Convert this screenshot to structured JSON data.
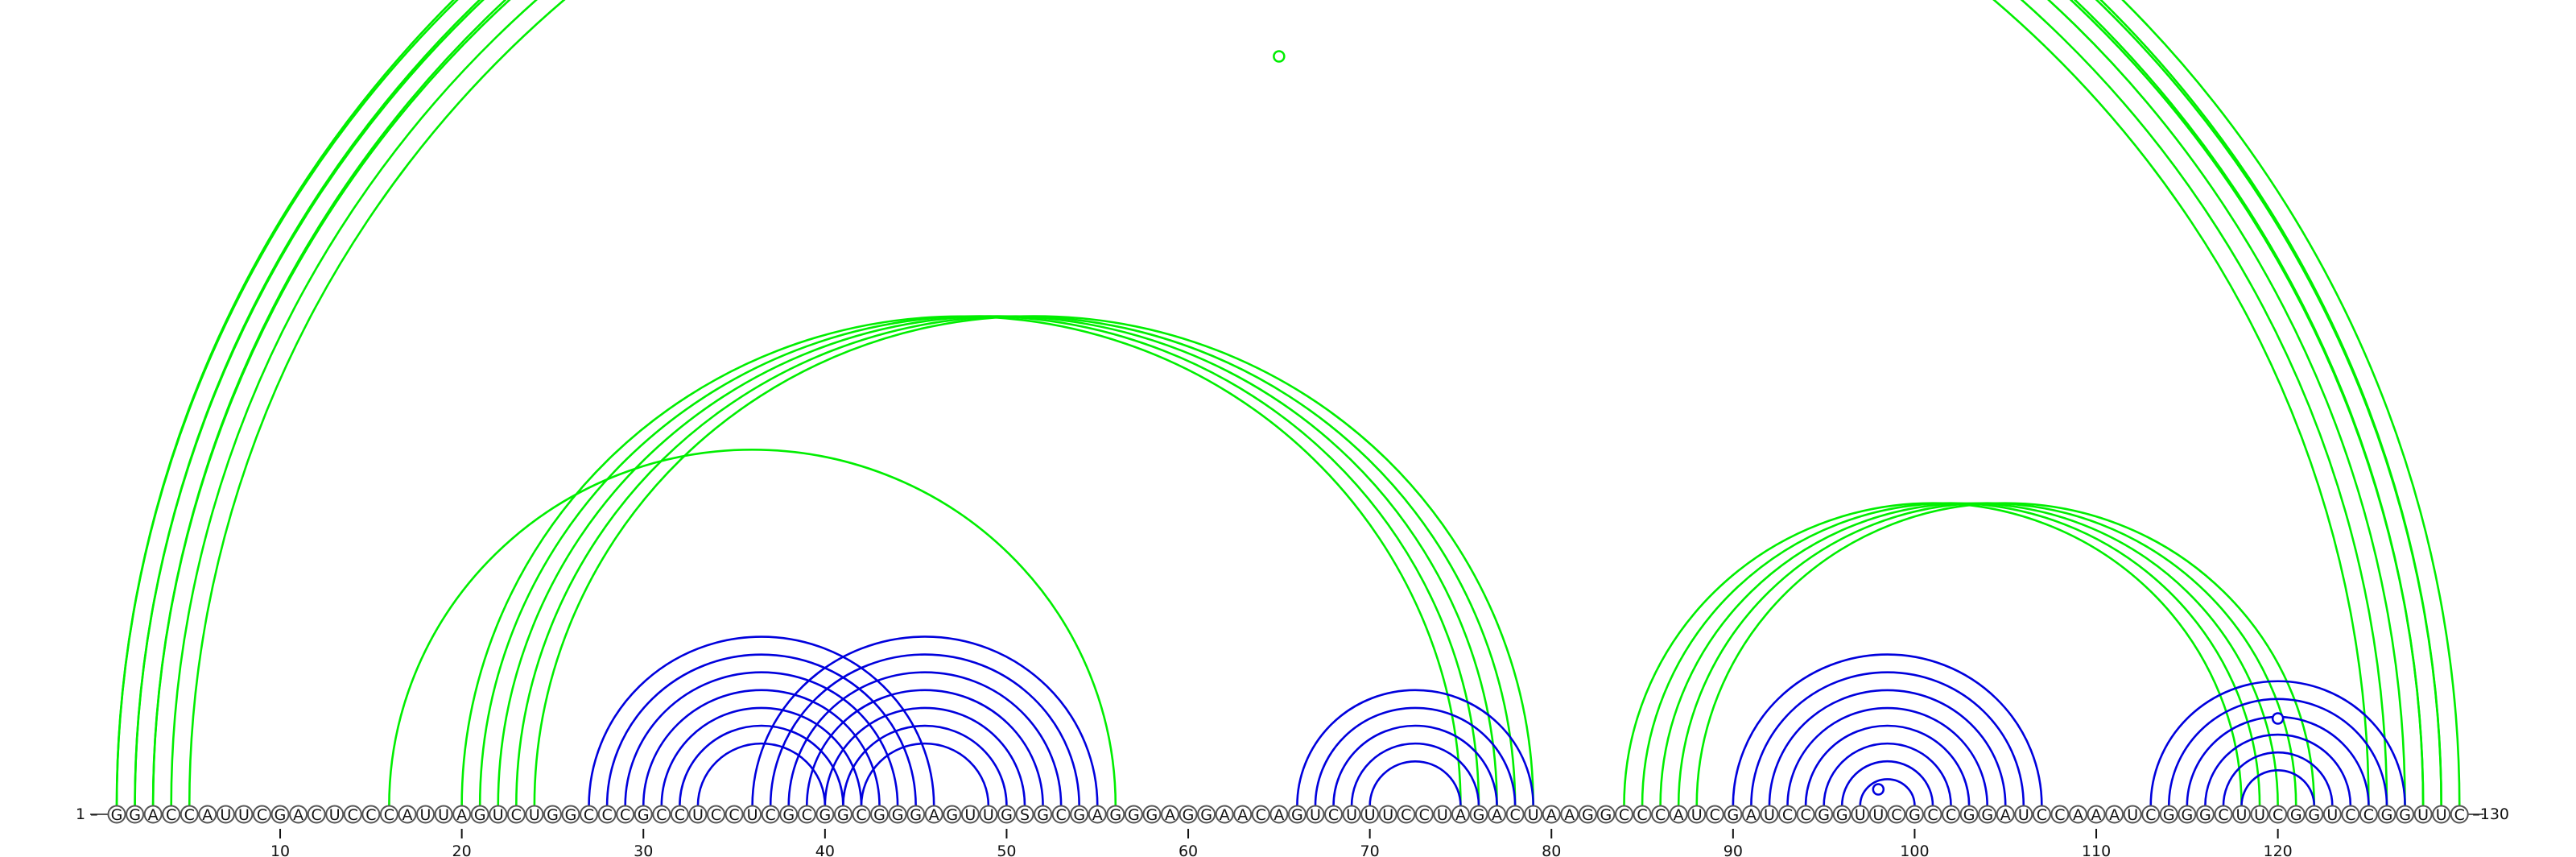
{
  "sequence": "GGACCAUUCGACUCCCAUUAGUCUGGCCCGCCUCCUCGCGGCGGGAGUUGSGCGAGGGAGGAACAGUCUUUCCUAGACUAAGGCCCAUCGAUCCGGUUCGCCGGAUCCAAAUCGGGCUUCGGUCCGGUUC",
  "start_label": "1",
  "end_label": "130",
  "tick_labels": [
    "10",
    "20",
    "30",
    "40",
    "50",
    "60",
    "70",
    "80",
    "90",
    "100",
    "110",
    "120"
  ],
  "tick_positions": [
    10,
    20,
    30,
    40,
    50,
    60,
    70,
    80,
    90,
    100,
    110,
    120
  ],
  "colors": {
    "upper_set": "#00ee00",
    "lower_set": "#0000dd"
  },
  "arc_sets": [
    {
      "color": "#00ee00",
      "pairs": [
        [
          1,
          129
        ],
        [
          1,
          130
        ],
        [
          2,
          128
        ],
        [
          2,
          129
        ],
        [
          3,
          127
        ],
        [
          3,
          128
        ],
        [
          4,
          126
        ],
        [
          5,
          125
        ],
        [
          16,
          56
        ],
        [
          20,
          75
        ],
        [
          21,
          76
        ],
        [
          22,
          77
        ],
        [
          23,
          78
        ],
        [
          24,
          79
        ],
        [
          84,
          118
        ],
        [
          85,
          119
        ],
        [
          86,
          120
        ],
        [
          87,
          121
        ],
        [
          88,
          122
        ]
      ]
    },
    {
      "color": "#0000dd",
      "pairs": [
        [
          27,
          46
        ],
        [
          28,
          45
        ],
        [
          29,
          44
        ],
        [
          30,
          43
        ],
        [
          31,
          42
        ],
        [
          32,
          41
        ],
        [
          33,
          40
        ],
        [
          36,
          55
        ],
        [
          37,
          54
        ],
        [
          38,
          53
        ],
        [
          39,
          52
        ],
        [
          40,
          51
        ],
        [
          41,
          50
        ],
        [
          42,
          49
        ],
        [
          66,
          79
        ],
        [
          67,
          78
        ],
        [
          68,
          77
        ],
        [
          69,
          76
        ],
        [
          70,
          75
        ],
        [
          90,
          107
        ],
        [
          91,
          106
        ],
        [
          92,
          105
        ],
        [
          93,
          104
        ],
        [
          94,
          103
        ],
        [
          95,
          102
        ],
        [
          96,
          101
        ],
        [
          97,
          100
        ],
        [
          113,
          127
        ],
        [
          114,
          126
        ],
        [
          115,
          125
        ],
        [
          116,
          124
        ],
        [
          117,
          123
        ],
        [
          118,
          122
        ]
      ]
    }
  ],
  "markers": [
    {
      "i": 65,
      "j": 65,
      "set": 0
    },
    {
      "i": 98,
      "j": 98,
      "set": 1
    },
    {
      "i": 120,
      "j": 120,
      "set": 1
    }
  ]
}
